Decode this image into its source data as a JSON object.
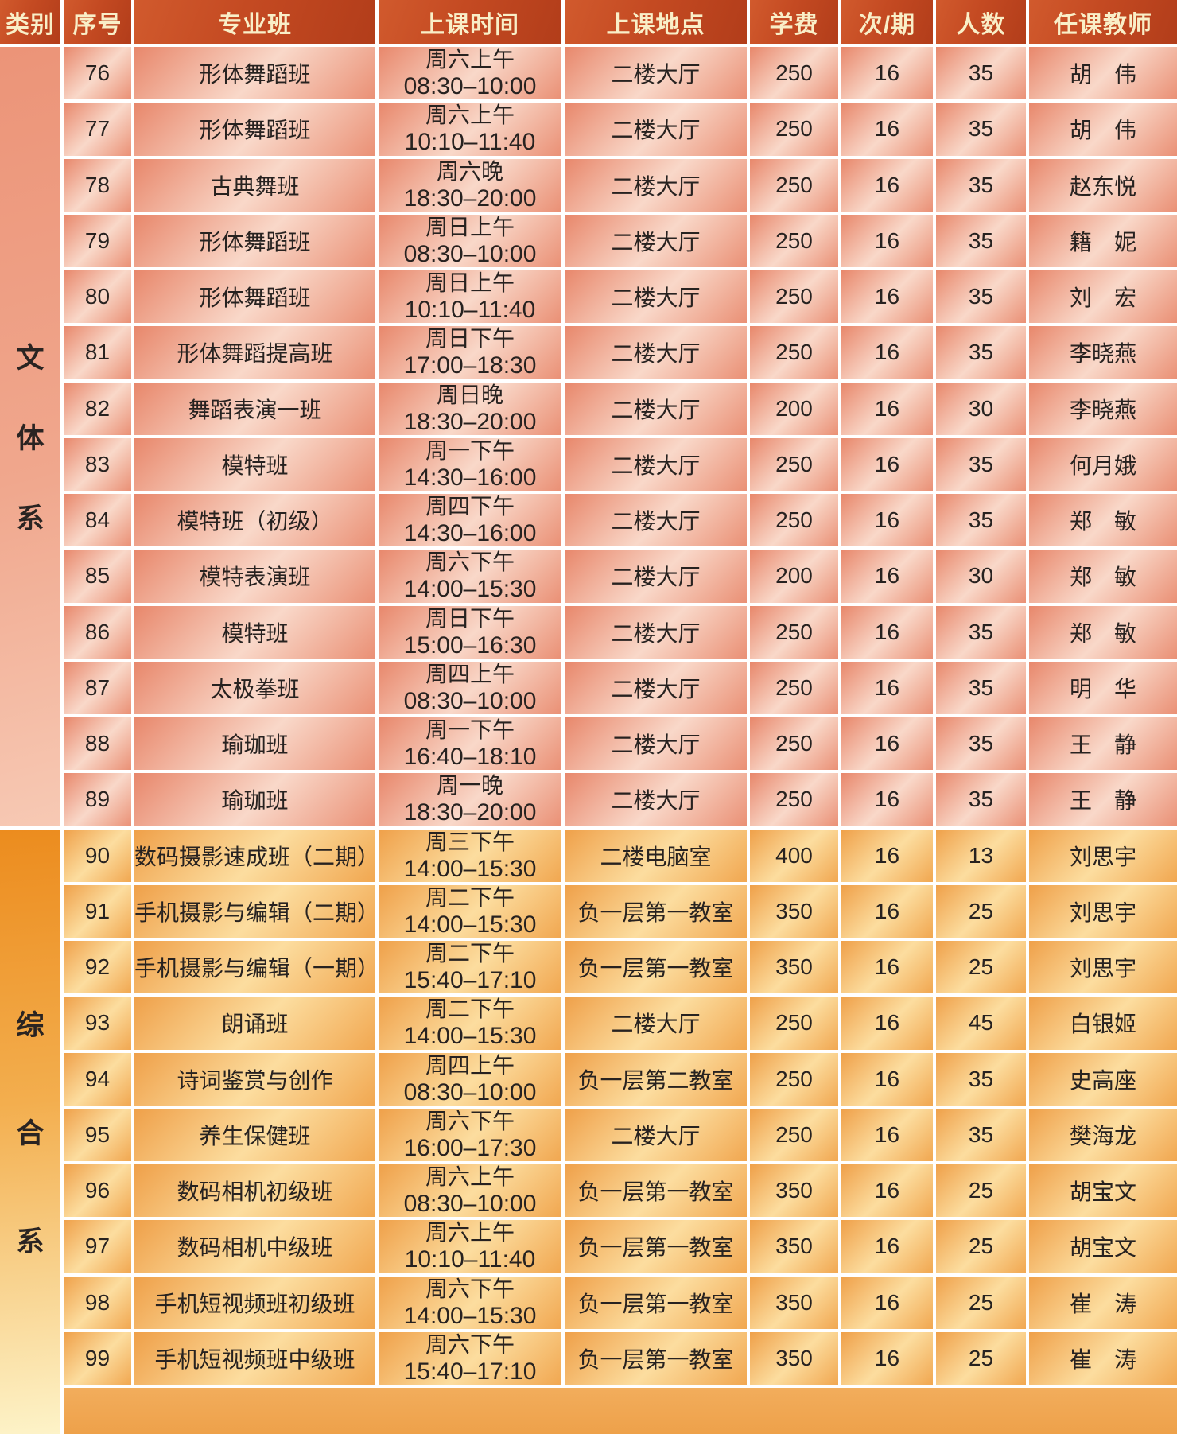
{
  "header": {
    "labels": [
      "类别",
      "序号",
      "专业班",
      "上课时间",
      "上课地点",
      "学费",
      "次/期",
      "人数",
      "任课教师"
    ]
  },
  "colors": {
    "header_bg": "#c44a22",
    "header_text": "#f9efc8",
    "pink_dark": "#e8876b",
    "pink_light": "#f9d8c9",
    "orange_dark": "#efa049",
    "orange_light": "#fcdd9f",
    "text": "#272220",
    "gap": "#ffffff"
  },
  "sections": [
    {
      "category": "文体系",
      "chars": [
        "文",
        "体",
        "系"
      ],
      "rows": [
        {
          "no": "76",
          "name": "形体舞蹈班",
          "day": "周六上午",
          "time": "08:30–10:00",
          "place": "二楼大厅",
          "fee": "250",
          "sessions": "16",
          "capacity": "35",
          "teacher": "胡　伟"
        },
        {
          "no": "77",
          "name": "形体舞蹈班",
          "day": "周六上午",
          "time": "10:10–11:40",
          "place": "二楼大厅",
          "fee": "250",
          "sessions": "16",
          "capacity": "35",
          "teacher": "胡　伟"
        },
        {
          "no": "78",
          "name": "古典舞班",
          "day": "周六晚",
          "time": "18:30–20:00",
          "place": "二楼大厅",
          "fee": "250",
          "sessions": "16",
          "capacity": "35",
          "teacher": "赵东悦"
        },
        {
          "no": "79",
          "name": "形体舞蹈班",
          "day": "周日上午",
          "time": "08:30–10:00",
          "place": "二楼大厅",
          "fee": "250",
          "sessions": "16",
          "capacity": "35",
          "teacher": "籍　妮"
        },
        {
          "no": "80",
          "name": "形体舞蹈班",
          "day": "周日上午",
          "time": "10:10–11:40",
          "place": "二楼大厅",
          "fee": "250",
          "sessions": "16",
          "capacity": "35",
          "teacher": "刘　宏"
        },
        {
          "no": "81",
          "name": "形体舞蹈提高班",
          "day": "周日下午",
          "time": "17:00–18:30",
          "place": "二楼大厅",
          "fee": "250",
          "sessions": "16",
          "capacity": "35",
          "teacher": "李晓燕"
        },
        {
          "no": "82",
          "name": "舞蹈表演一班",
          "day": "周日晚",
          "time": "18:30–20:00",
          "place": "二楼大厅",
          "fee": "200",
          "sessions": "16",
          "capacity": "30",
          "teacher": "李晓燕"
        },
        {
          "no": "83",
          "name": "模特班",
          "day": "周一下午",
          "time": "14:30–16:00",
          "place": "二楼大厅",
          "fee": "250",
          "sessions": "16",
          "capacity": "35",
          "teacher": "何月娥"
        },
        {
          "no": "84",
          "name": "模特班（初级）",
          "day": "周四下午",
          "time": "14:30–16:00",
          "place": "二楼大厅",
          "fee": "250",
          "sessions": "16",
          "capacity": "35",
          "teacher": "郑　敏"
        },
        {
          "no": "85",
          "name": "模特表演班",
          "day": "周六下午",
          "time": "14:00–15:30",
          "place": "二楼大厅",
          "fee": "200",
          "sessions": "16",
          "capacity": "30",
          "teacher": "郑　敏"
        },
        {
          "no": "86",
          "name": "模特班",
          "day": "周日下午",
          "time": "15:00–16:30",
          "place": "二楼大厅",
          "fee": "250",
          "sessions": "16",
          "capacity": "35",
          "teacher": "郑　敏"
        },
        {
          "no": "87",
          "name": "太极拳班",
          "day": "周四上午",
          "time": "08:30–10:00",
          "place": "二楼大厅",
          "fee": "250",
          "sessions": "16",
          "capacity": "35",
          "teacher": "明　华"
        },
        {
          "no": "88",
          "name": "瑜珈班",
          "day": "周一下午",
          "time": "16:40–18:10",
          "place": "二楼大厅",
          "fee": "250",
          "sessions": "16",
          "capacity": "35",
          "teacher": "王　静"
        },
        {
          "no": "89",
          "name": "瑜珈班",
          "day": "周一晚",
          "time": "18:30–20:00",
          "place": "二楼大厅",
          "fee": "250",
          "sessions": "16",
          "capacity": "35",
          "teacher": "王　静"
        }
      ]
    },
    {
      "category": "综合系",
      "chars": [
        "综",
        "合",
        "系"
      ],
      "rows": [
        {
          "no": "90",
          "name": "数码摄影速成班（二期）",
          "day": "周三下午",
          "time": "14:00–15:30",
          "place": "二楼电脑室",
          "fee": "400",
          "sessions": "16",
          "capacity": "13",
          "teacher": "刘思宇"
        },
        {
          "no": "91",
          "name": "手机摄影与编辑（二期）",
          "day": "周二下午",
          "time": "14:00–15:30",
          "place": "负一层第一教室",
          "fee": "350",
          "sessions": "16",
          "capacity": "25",
          "teacher": "刘思宇"
        },
        {
          "no": "92",
          "name": "手机摄影与编辑（一期）",
          "day": "周二下午",
          "time": "15:40–17:10",
          "place": "负一层第一教室",
          "fee": "350",
          "sessions": "16",
          "capacity": "25",
          "teacher": "刘思宇"
        },
        {
          "no": "93",
          "name": "朗诵班",
          "day": "周二下午",
          "time": "14:00–15:30",
          "place": "二楼大厅",
          "fee": "250",
          "sessions": "16",
          "capacity": "45",
          "teacher": "白银姬"
        },
        {
          "no": "94",
          "name": "诗词鉴赏与创作",
          "day": "周四上午",
          "time": "08:30–10:00",
          "place": "负一层第二教室",
          "fee": "250",
          "sessions": "16",
          "capacity": "35",
          "teacher": "史高座"
        },
        {
          "no": "95",
          "name": "养生保健班",
          "day": "周六下午",
          "time": "16:00–17:30",
          "place": "二楼大厅",
          "fee": "250",
          "sessions": "16",
          "capacity": "35",
          "teacher": "樊海龙"
        },
        {
          "no": "96",
          "name": "数码相机初级班",
          "day": "周六上午",
          "time": "08:30–10:00",
          "place": "负一层第一教室",
          "fee": "350",
          "sessions": "16",
          "capacity": "25",
          "teacher": "胡宝文"
        },
        {
          "no": "97",
          "name": "数码相机中级班",
          "day": "周六上午",
          "time": "10:10–11:40",
          "place": "负一层第一教室",
          "fee": "350",
          "sessions": "16",
          "capacity": "25",
          "teacher": "胡宝文"
        },
        {
          "no": "98",
          "name": "手机短视频班初级班",
          "day": "周六下午",
          "time": "14:00–15:30",
          "place": "负一层第一教室",
          "fee": "350",
          "sessions": "16",
          "capacity": "25",
          "teacher": "崔　涛"
        },
        {
          "no": "99",
          "name": "手机短视频班中级班",
          "day": "周六下午",
          "time": "15:40–17:10",
          "place": "负一层第一教室",
          "fee": "350",
          "sessions": "16",
          "capacity": "25",
          "teacher": "崔　涛"
        }
      ]
    }
  ]
}
